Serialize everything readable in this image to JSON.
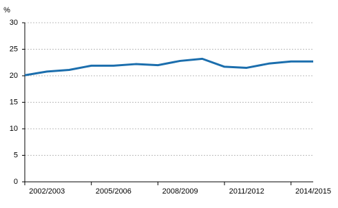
{
  "chart_data": {
    "type": "line",
    "y_label": "%",
    "categories": [
      null,
      "2002/2003",
      null,
      null,
      "2005/2006",
      null,
      null,
      "2008/2009",
      null,
      null,
      "2011/2012",
      null,
      null,
      "2014/2015"
    ],
    "series": [
      {
        "color": "#1b6ead",
        "values": [
          20.1,
          20.8,
          21.1,
          21.9,
          21.9,
          22.2,
          22.0,
          22.8,
          23.2,
          21.7,
          21.5,
          22.3,
          22.7,
          22.7
        ]
      }
    ],
    "ylim": [
      0,
      30
    ],
    "yticks": [
      0,
      5,
      10,
      15,
      20,
      25,
      30
    ],
    "grid": true
  }
}
